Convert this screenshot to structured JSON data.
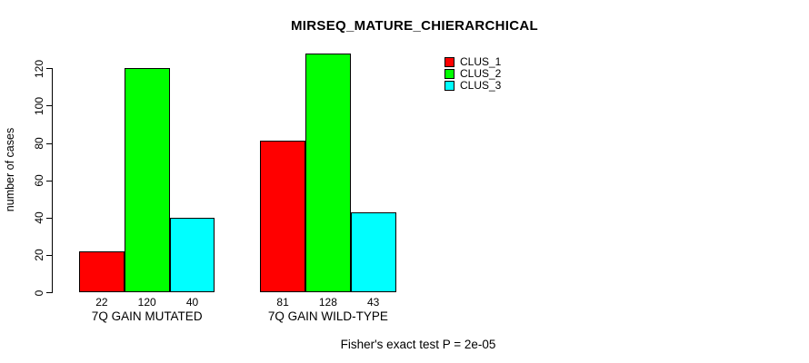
{
  "chart_data": {
    "type": "bar",
    "title": "MIRSEQ_MATURE_CHIERARCHICAL",
    "ylabel": "number of cases",
    "xlabel": "",
    "categories": [
      "7Q GAIN MUTATED",
      "7Q GAIN WILD-TYPE"
    ],
    "series": [
      {
        "name": "CLUS_1",
        "color": "#ff0000",
        "values": [
          22,
          81
        ]
      },
      {
        "name": "CLUS_2",
        "color": "#00ff00",
        "values": [
          120,
          128
        ]
      },
      {
        "name": "CLUS_3",
        "color": "#00ffff",
        "values": [
          40,
          43
        ]
      }
    ],
    "yticks": [
      0,
      20,
      40,
      60,
      80,
      100,
      120
    ],
    "ylim": [
      0,
      128
    ],
    "grid": false,
    "legend_position": "top-right",
    "legend_entries": [
      "CLUS_1",
      "CLUS_2",
      "CLUS_3"
    ],
    "bar_value_labels_shown": true,
    "annotation": "Fisher's exact test P = 2e-05"
  }
}
